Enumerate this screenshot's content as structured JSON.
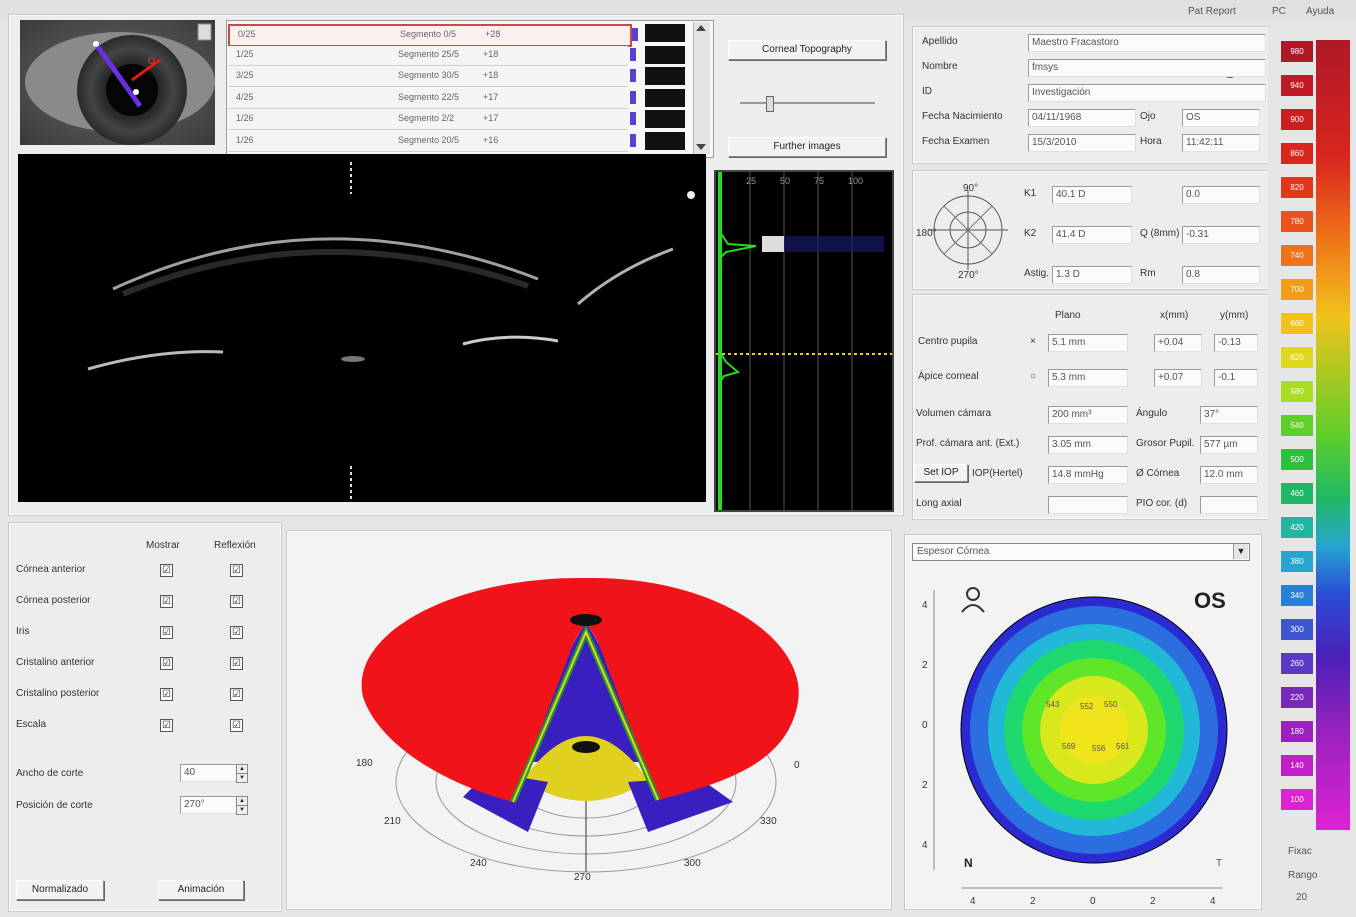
{
  "titlebar": {
    "right_text_1": "Pat Report",
    "right_text_2": "PC",
    "right_text_3": "Ayuda"
  },
  "segments": [
    {
      "label": "0/25",
      "name": "Segmento 0/5",
      "value": "+28",
      "selected": true
    },
    {
      "label": "1/25",
      "name": "Segmento 25/5",
      "value": "+18",
      "selected": false
    },
    {
      "label": "3/25",
      "name": "Segmento 30/5",
      "value": "+18",
      "selected": false
    },
    {
      "label": "4/25",
      "name": "Segmento 22/5",
      "value": "+17",
      "selected": false
    },
    {
      "label": "1/26",
      "name": "Segmento 2/2",
      "value": "+17",
      "selected": false
    },
    {
      "label": "1/26",
      "name": "Segmento 20/5",
      "value": "+16",
      "selected": false
    }
  ],
  "buttons": {
    "corneal_topo": "Corneal Topography",
    "further_images": "Further images",
    "normalize": "Normalizado",
    "animation": "Animación",
    "set_iop": "Set IOP"
  },
  "patient": {
    "labels": [
      "Apellido",
      "Nombre",
      "ID",
      "Fecha Nacimiento",
      "Fecha Examen"
    ],
    "values": [
      "Maestro Fracastoro",
      "fmsys",
      "Investigación",
      "04/11/1968",
      "15/3/2010"
    ],
    "side_labels": [
      "Ojo",
      "Hora"
    ],
    "side_values": [
      "OS",
      "11:42:11"
    ]
  },
  "kerato": {
    "axis_top": "90°",
    "axis_left": "180°",
    "axis_bottom": "270°",
    "rows": [
      {
        "label": "K1",
        "value": "40.1 D",
        "label2": "",
        "value2": "0.0"
      },
      {
        "label": "K2",
        "value": "41.4 D",
        "label2": "Q (8mm)",
        "value2": "-0.31"
      },
      {
        "label": "Astig.",
        "value": "1.3 D",
        "label2": "Rm",
        "value2": "0.8"
      }
    ]
  },
  "measure": {
    "col_headers": [
      "Plano",
      "x(mm)",
      "y(mm)"
    ],
    "rows": [
      {
        "label": "Centro pupila",
        "symbol": "×",
        "value": "5.1 mm",
        "x": "+0.04",
        "y": "-0.13"
      },
      {
        "label": "Ápice corneal",
        "symbol": "○",
        "value": "5.3 mm",
        "x": "+0.07",
        "y": "-0.1"
      }
    ],
    "extra": [
      {
        "label": "Volumen cámara",
        "value": "200 mm³",
        "label2": "Ángulo",
        "value2": "37°"
      },
      {
        "label": "Prof. cámara ant. (Ext.)",
        "value": "3.05 mm",
        "label2": "Grosor Pupil.",
        "value2": "577 µm"
      },
      {
        "label": "IOP(Hertel)",
        "value": "14.8 mmHg",
        "label2": "Ø Córnea",
        "value2": "12.0 mm"
      },
      {
        "label": "Long axial",
        "value": "",
        "label2": "PIO cor. (d)",
        "value2": ""
      }
    ]
  },
  "display_opts": {
    "header_show": "Mostrar",
    "header_reflect": "Reflexión",
    "items": [
      {
        "label": "Córnea anterior",
        "show": "☑",
        "reflect": "☑"
      },
      {
        "label": "Córnea posterior",
        "show": "☑",
        "reflect": "☑"
      },
      {
        "label": "Iris",
        "show": "☑",
        "reflect": "☑"
      },
      {
        "label": "Cristalino anterior",
        "show": "☑",
        "reflect": "☑"
      },
      {
        "label": "Cristalino posterior",
        "show": "☑",
        "reflect": "☑"
      },
      {
        "label": "Escala",
        "show": "☑",
        "reflect": "☑"
      }
    ],
    "width_label": "Ancho de corte",
    "width_value": "40",
    "pos_label": "Posición de corte",
    "pos_value": "270°"
  },
  "polar": {
    "labels": [
      "180",
      "0",
      "210",
      "330",
      "240",
      "300",
      "270"
    ]
  },
  "map": {
    "dropdown": "Espesor Córnea",
    "eye": "OS",
    "compass_n": "N",
    "compass_t": "T",
    "left_axis": [
      "4",
      "2",
      "0",
      "2",
      "4"
    ],
    "bottom_axis": [
      "4",
      "2",
      "0",
      "2",
      "4"
    ],
    "center_values": [
      "543",
      "552",
      "550",
      "569",
      "556",
      "561"
    ]
  },
  "colorscale": {
    "values": [
      "980",
      "940",
      "900",
      "860",
      "820",
      "780",
      "740",
      "700",
      "660",
      "620",
      "580",
      "540",
      "500",
      "460",
      "420",
      "380",
      "340",
      "300",
      "260",
      "220",
      "180",
      "140",
      "100"
    ],
    "colors": [
      "#b01828",
      "#c01a26",
      "#cc1e22",
      "#d9261e",
      "#e2361a",
      "#e95218",
      "#ef7318",
      "#f39c1a",
      "#f2c21c",
      "#dfd81e",
      "#a9dc22",
      "#5fcf2a",
      "#2fbf3f",
      "#20b866",
      "#22b5a2",
      "#26a6cf",
      "#2a7fd6",
      "#3d56d2",
      "#5b38c8",
      "#7728b8",
      "#9c22bf",
      "#c21fcb",
      "#dd22d2"
    ],
    "footer_1": "Fixac",
    "footer_2": "Rango",
    "footer_3": "20"
  }
}
